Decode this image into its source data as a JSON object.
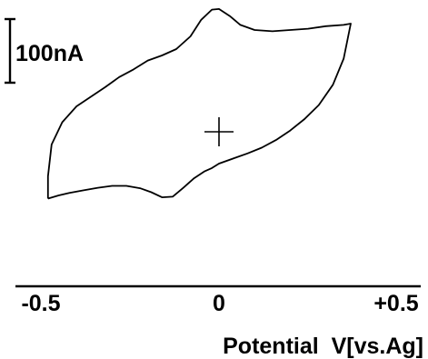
{
  "chart_data": {
    "type": "line",
    "title": "",
    "xlabel": "Potential  V[vs.Ag]",
    "ylabel": "",
    "xlim": [
      -0.55,
      0.55
    ],
    "x_ticks": [
      "-0.5",
      "0",
      "+0.5"
    ],
    "scale_bar_label": "100nA",
    "scale_bar_value_nA": 100,
    "grid": false,
    "legend": "none",
    "origin_marker": "cross at 0 V, 0 nA",
    "series": [
      {
        "x": [
          -0.48,
          -0.45,
          -0.42,
          -0.38,
          -0.34,
          -0.3,
          -0.26,
          -0.22,
          -0.19,
          -0.16,
          -0.13,
          -0.1,
          -0.07,
          -0.04,
          -0.02,
          0.0,
          0.04,
          0.08,
          0.12,
          0.16,
          0.2,
          0.24,
          0.28,
          0.32,
          0.35,
          0.37,
          0.37,
          0.35,
          0.3,
          0.25,
          0.2,
          0.15,
          0.1,
          0.06,
          0.03,
          0.0,
          -0.02,
          -0.05,
          -0.08,
          -0.12,
          -0.16,
          -0.2,
          -0.24,
          -0.28,
          -0.32,
          -0.36,
          -0.4,
          -0.44,
          -0.47,
          -0.48,
          -0.48
        ],
        "y": [
          -105,
          -100,
          -96,
          -92,
          -88,
          -85,
          -85,
          -89,
          -95,
          -103,
          -102,
          -88,
          -73,
          -62,
          -57,
          -50,
          -42,
          -34,
          -25,
          -13,
          2,
          20,
          42,
          74,
          115,
          170,
          170,
          168,
          166,
          162,
          160,
          158,
          160,
          168,
          182,
          193,
          192,
          176,
          150,
          130,
          120,
          112,
          98,
          86,
          70,
          55,
          40,
          15,
          -20,
          -70,
          -105
        ]
      }
    ]
  }
}
